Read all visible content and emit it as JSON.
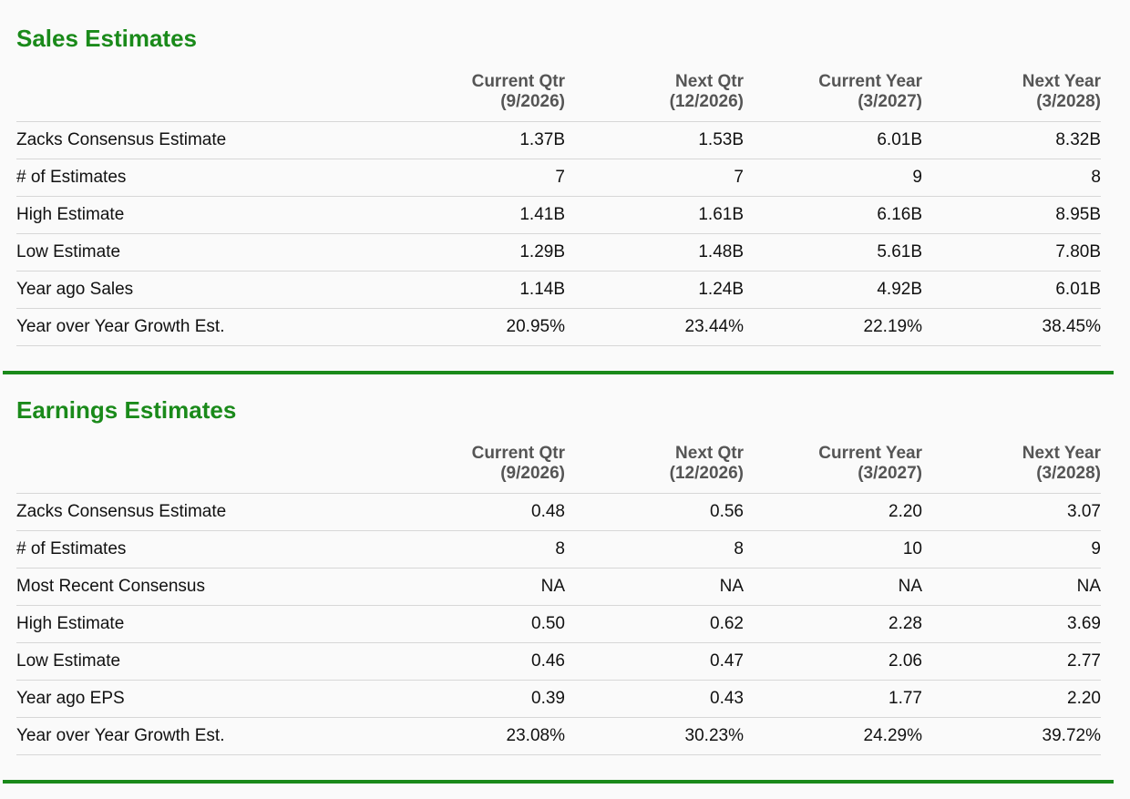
{
  "sales": {
    "title": "Sales Estimates",
    "columns": [
      {
        "name": "Current Qtr",
        "period": "(9/2026)"
      },
      {
        "name": "Next Qtr",
        "period": "(12/2026)"
      },
      {
        "name": "Current Year",
        "period": "(3/2027)"
      },
      {
        "name": "Next Year",
        "period": "(3/2028)"
      }
    ],
    "rows": [
      {
        "label": "Zacks Consensus Estimate",
        "values": [
          "1.37B",
          "1.53B",
          "6.01B",
          "8.32B"
        ]
      },
      {
        "label": "# of Estimates",
        "values": [
          "7",
          "7",
          "9",
          "8"
        ]
      },
      {
        "label": "High Estimate",
        "values": [
          "1.41B",
          "1.61B",
          "6.16B",
          "8.95B"
        ]
      },
      {
        "label": "Low Estimate",
        "values": [
          "1.29B",
          "1.48B",
          "5.61B",
          "7.80B"
        ]
      },
      {
        "label": "Year ago Sales",
        "values": [
          "1.14B",
          "1.24B",
          "4.92B",
          "6.01B"
        ]
      },
      {
        "label": "Year over Year Growth Est.",
        "values": [
          "20.95%",
          "23.44%",
          "22.19%",
          "38.45%"
        ]
      }
    ]
  },
  "earnings": {
    "title": "Earnings Estimates",
    "columns": [
      {
        "name": "Current Qtr",
        "period": "(9/2026)"
      },
      {
        "name": "Next Qtr",
        "period": "(12/2026)"
      },
      {
        "name": "Current Year",
        "period": "(3/2027)"
      },
      {
        "name": "Next Year",
        "period": "(3/2028)"
      }
    ],
    "rows": [
      {
        "label": "Zacks Consensus Estimate",
        "values": [
          "0.48",
          "0.56",
          "2.20",
          "3.07"
        ]
      },
      {
        "label": "# of Estimates",
        "values": [
          "8",
          "8",
          "10",
          "9"
        ]
      },
      {
        "label": "Most Recent Consensus",
        "values": [
          "NA",
          "NA",
          "NA",
          "NA"
        ]
      },
      {
        "label": "High Estimate",
        "values": [
          "0.50",
          "0.62",
          "2.28",
          "3.69"
        ]
      },
      {
        "label": "Low Estimate",
        "values": [
          "0.46",
          "0.47",
          "2.06",
          "2.77"
        ]
      },
      {
        "label": "Year ago EPS",
        "values": [
          "0.39",
          "0.43",
          "1.77",
          "2.20"
        ]
      },
      {
        "label": "Year over Year Growth Est.",
        "values": [
          "23.08%",
          "30.23%",
          "24.29%",
          "39.72%"
        ]
      }
    ]
  },
  "colors": {
    "accent_green": "#1a8a1a",
    "header_text": "#555555",
    "row_divider": "#d7d7d7"
  }
}
